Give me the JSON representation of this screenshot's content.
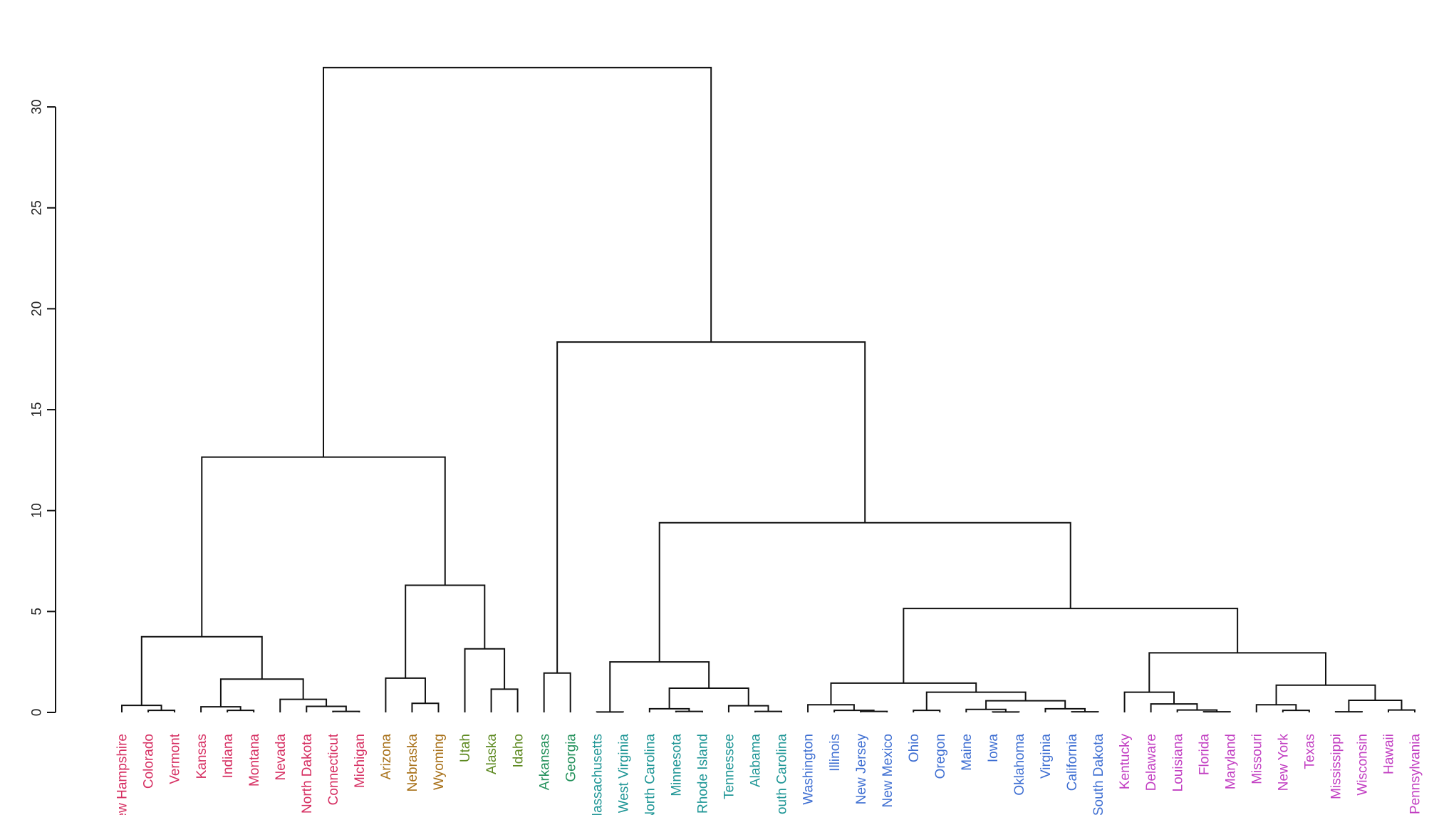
{
  "chart_data": {
    "type": "dendrogram",
    "title": "",
    "xlabel": "",
    "ylabel": "",
    "ylim": [
      0,
      32
    ],
    "yticks": [
      0,
      5,
      10,
      15,
      20,
      25,
      30
    ],
    "leaves": [
      {
        "name": "New Hampshire",
        "cluster": 0
      },
      {
        "name": "Colorado",
        "cluster": 0
      },
      {
        "name": "Vermont",
        "cluster": 0
      },
      {
        "name": "Kansas",
        "cluster": 0
      },
      {
        "name": "Indiana",
        "cluster": 0
      },
      {
        "name": "Montana",
        "cluster": 0
      },
      {
        "name": "Nevada",
        "cluster": 0
      },
      {
        "name": "North Dakota",
        "cluster": 0
      },
      {
        "name": "Connecticut",
        "cluster": 0
      },
      {
        "name": "Michigan",
        "cluster": 0
      },
      {
        "name": "Arizona",
        "cluster": 1
      },
      {
        "name": "Nebraska",
        "cluster": 1
      },
      {
        "name": "Wyoming",
        "cluster": 1
      },
      {
        "name": "Utah",
        "cluster": 2
      },
      {
        "name": "Alaska",
        "cluster": 2
      },
      {
        "name": "Idaho",
        "cluster": 2
      },
      {
        "name": "Arkansas",
        "cluster": 3
      },
      {
        "name": "Georgia",
        "cluster": 3
      },
      {
        "name": "Massachusetts",
        "cluster": 4
      },
      {
        "name": "West Virginia",
        "cluster": 4
      },
      {
        "name": "North Carolina",
        "cluster": 4
      },
      {
        "name": "Minnesota",
        "cluster": 4
      },
      {
        "name": "Rhode Island",
        "cluster": 4
      },
      {
        "name": "Tennessee",
        "cluster": 4
      },
      {
        "name": "Alabama",
        "cluster": 4
      },
      {
        "name": "South Carolina",
        "cluster": 4
      },
      {
        "name": "Washington",
        "cluster": 5
      },
      {
        "name": "Illinois",
        "cluster": 5
      },
      {
        "name": "New Jersey",
        "cluster": 5
      },
      {
        "name": "New Mexico",
        "cluster": 5
      },
      {
        "name": "Ohio",
        "cluster": 5
      },
      {
        "name": "Oregon",
        "cluster": 5
      },
      {
        "name": "Maine",
        "cluster": 5
      },
      {
        "name": "Iowa",
        "cluster": 5
      },
      {
        "name": "Oklahoma",
        "cluster": 5
      },
      {
        "name": "Virginia",
        "cluster": 5
      },
      {
        "name": "California",
        "cluster": 5
      },
      {
        "name": "South Dakota",
        "cluster": 5
      },
      {
        "name": "Kentucky",
        "cluster": 6
      },
      {
        "name": "Delaware",
        "cluster": 6
      },
      {
        "name": "Louisiana",
        "cluster": 6
      },
      {
        "name": "Florida",
        "cluster": 6
      },
      {
        "name": "Maryland",
        "cluster": 6
      },
      {
        "name": "Missouri",
        "cluster": 6
      },
      {
        "name": "New York",
        "cluster": 6
      },
      {
        "name": "Texas",
        "cluster": 6
      },
      {
        "name": "Mississippi",
        "cluster": 6
      },
      {
        "name": "Wisconsin",
        "cluster": 6
      },
      {
        "name": "Hawaii",
        "cluster": 6
      },
      {
        "name": "Pennsylvania",
        "cluster": 6
      }
    ],
    "cluster_colors": [
      "#d62f62",
      "#a8711a",
      "#5e8a22",
      "#23915b",
      "#1f9696",
      "#3f6fd2",
      "#c23fc2"
    ],
    "merges": [
      {
        "a": 1,
        "b": 2,
        "height": 0.1
      },
      {
        "a": 0,
        "b": 1,
        "height": 0.35
      },
      {
        "a": 4,
        "b": 5,
        "height": 0.1
      },
      {
        "a": 3,
        "b": 4,
        "height": 0.28
      },
      {
        "a": 8,
        "b": 9,
        "height": 0.05
      },
      {
        "a": 7,
        "b": 8,
        "height": 0.3
      },
      {
        "a": 6,
        "b": 7,
        "height": 0.65
      },
      {
        "a": 3,
        "b": 6,
        "height": 1.65
      },
      {
        "a": 0,
        "b": 3,
        "height": 3.75
      },
      {
        "a": 11,
        "b": 12,
        "height": 0.45
      },
      {
        "a": 10,
        "b": 11,
        "height": 1.7
      },
      {
        "a": 14,
        "b": 15,
        "height": 1.15
      },
      {
        "a": 13,
        "b": 14,
        "height": 3.15
      },
      {
        "a": 10,
        "b": 13,
        "height": 6.3
      },
      {
        "a": 0,
        "b": 10,
        "height": 12.65
      },
      {
        "a": 16,
        "b": 17,
        "height": 1.95
      },
      {
        "a": 18,
        "b": 19,
        "height": 0.02
      },
      {
        "a": 21,
        "b": 22,
        "height": 0.05
      },
      {
        "a": 20,
        "b": 21,
        "height": 0.18
      },
      {
        "a": 24,
        "b": 25,
        "height": 0.05
      },
      {
        "a": 23,
        "b": 24,
        "height": 0.33
      },
      {
        "a": 20,
        "b": 23,
        "height": 1.2
      },
      {
        "a": 18,
        "b": 20,
        "height": 2.5
      },
      {
        "a": 28,
        "b": 29,
        "height": 0.05
      },
      {
        "a": 27,
        "b": 28,
        "height": 0.1
      },
      {
        "a": 26,
        "b": 27,
        "height": 0.38
      },
      {
        "a": 30,
        "b": 31,
        "height": 0.1
      },
      {
        "a": 33,
        "b": 34,
        "height": 0.02
      },
      {
        "a": 32,
        "b": 33,
        "height": 0.15
      },
      {
        "a": 36,
        "b": 37,
        "height": 0.03
      },
      {
        "a": 35,
        "b": 36,
        "height": 0.18
      },
      {
        "a": 32,
        "b": 35,
        "height": 0.58
      },
      {
        "a": 30,
        "b": 32,
        "height": 1.0
      },
      {
        "a": 26,
        "b": 30,
        "height": 1.45
      },
      {
        "a": 41,
        "b": 42,
        "height": 0.03
      },
      {
        "a": 40,
        "b": 41,
        "height": 0.12
      },
      {
        "a": 39,
        "b": 40,
        "height": 0.42
      },
      {
        "a": 38,
        "b": 39,
        "height": 1.0
      },
      {
        "a": 44,
        "b": 45,
        "height": 0.1
      },
      {
        "a": 43,
        "b": 44,
        "height": 0.38
      },
      {
        "a": 46,
        "b": 47,
        "height": 0.03
      },
      {
        "a": 48,
        "b": 49,
        "height": 0.12
      },
      {
        "a": 46,
        "b": 48,
        "height": 0.6
      },
      {
        "a": 43,
        "b": 46,
        "height": 1.35
      },
      {
        "a": 38,
        "b": 43,
        "height": 2.95
      },
      {
        "a": 26,
        "b": 38,
        "height": 5.15
      },
      {
        "a": 18,
        "b": 26,
        "height": 9.4
      },
      {
        "a": 16,
        "b": 18,
        "height": 18.35
      },
      {
        "a": 0,
        "b": 16,
        "height": 31.95
      }
    ]
  }
}
